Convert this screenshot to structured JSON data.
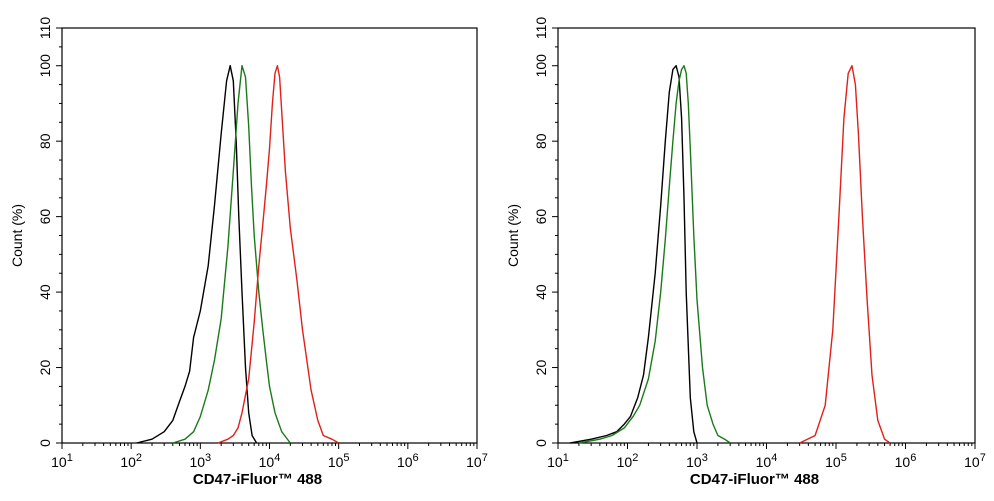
{
  "chart_data": [
    {
      "type": "line",
      "xlabel": "CD47-iFluor™ 488",
      "ylabel": "Count (%)",
      "xscale": "log",
      "xlim": [
        10,
        10000000
      ],
      "ylim": [
        0,
        110
      ],
      "x_tick_labels": [
        "10^1",
        "10^2",
        "10^3",
        "10^4",
        "10^5",
        "10^6",
        "10^7"
      ],
      "y_tick_labels": [
        "0",
        "20",
        "40",
        "60",
        "80",
        "100",
        "110"
      ],
      "y_ticks": [
        0,
        20,
        40,
        60,
        80,
        100,
        110
      ],
      "series": [
        {
          "color": "#000000",
          "x": [
            120,
            200,
            300,
            400,
            500,
            600,
            700,
            800,
            1000,
            1300,
            1600,
            2000,
            2400,
            2700,
            3000,
            3300,
            3600,
            4000,
            4500,
            5000,
            5600,
            6500
          ],
          "y": [
            0,
            1,
            3,
            6,
            11,
            15,
            19,
            28,
            35,
            47,
            63,
            82,
            96,
            100,
            96,
            80,
            60,
            40,
            20,
            8,
            2,
            0
          ]
        },
        {
          "color": "#1a7a1a",
          "x": [
            400,
            600,
            800,
            1000,
            1300,
            1600,
            2000,
            2500,
            3000,
            3500,
            4000,
            4500,
            5000,
            5500,
            6000,
            7000,
            8000,
            9000,
            10000,
            12000,
            15000,
            20000
          ],
          "y": [
            0,
            1,
            3,
            7,
            14,
            22,
            33,
            52,
            72,
            90,
            100,
            97,
            84,
            68,
            55,
            40,
            30,
            22,
            15,
            8,
            3,
            0
          ]
        },
        {
          "color": "#e0201a",
          "x": [
            1800,
            2500,
            3000,
            3500,
            4000,
            5000,
            6000,
            7000,
            8000,
            9000,
            10000,
            11000,
            12000,
            13000,
            14000,
            15000,
            17000,
            20000,
            25000,
            30000,
            40000,
            50000,
            60000,
            80000,
            100000
          ],
          "y": [
            0,
            1,
            2,
            4,
            8,
            17,
            32,
            47,
            58,
            68,
            78,
            90,
            98,
            100,
            97,
            88,
            72,
            57,
            43,
            30,
            14,
            6,
            2,
            1,
            0
          ]
        }
      ]
    },
    {
      "type": "line",
      "xlabel": "CD47-iFluor™ 488",
      "ylabel": "Count (%)",
      "xscale": "log",
      "xlim": [
        10,
        10000000
      ],
      "ylim": [
        0,
        110
      ],
      "x_tick_labels": [
        "10^1",
        "10^2",
        "10^3",
        "10^4",
        "10^5",
        "10^6",
        "10^7"
      ],
      "y_tick_labels": [
        "0",
        "20",
        "40",
        "60",
        "80",
        "100",
        "110"
      ],
      "y_ticks": [
        0,
        20,
        40,
        60,
        80,
        100,
        110
      ],
      "series": [
        {
          "color": "#000000",
          "x": [
            15,
            30,
            50,
            70,
            90,
            110,
            140,
            170,
            200,
            250,
            300,
            350,
            400,
            450,
            500,
            550,
            600,
            650,
            700,
            800,
            900,
            1000
          ],
          "y": [
            0,
            1,
            2,
            3,
            5,
            7,
            12,
            18,
            28,
            45,
            63,
            80,
            93,
            99,
            100,
            97,
            86,
            65,
            40,
            12,
            3,
            0
          ]
        },
        {
          "color": "#1a7a1a",
          "x": [
            20,
            40,
            60,
            90,
            120,
            150,
            200,
            250,
            300,
            350,
            400,
            450,
            500,
            550,
            600,
            650,
            700,
            750,
            800,
            900,
            1000,
            1200,
            1400,
            1700,
            2000,
            2500,
            3000
          ],
          "y": [
            0,
            1,
            2,
            4,
            7,
            10,
            17,
            27,
            40,
            54,
            68,
            80,
            90,
            96,
            99,
            100,
            98,
            90,
            78,
            55,
            38,
            20,
            10,
            5,
            2,
            1,
            0
          ]
        },
        {
          "color": "#e0201a",
          "x": [
            30000,
            50000,
            70000,
            90000,
            110000,
            130000,
            150000,
            170000,
            190000,
            210000,
            240000,
            280000,
            330000,
            400000,
            500000,
            600000
          ],
          "y": [
            0,
            2,
            10,
            30,
            60,
            86,
            98,
            100,
            95,
            82,
            60,
            38,
            18,
            6,
            1,
            0
          ]
        }
      ]
    }
  ]
}
